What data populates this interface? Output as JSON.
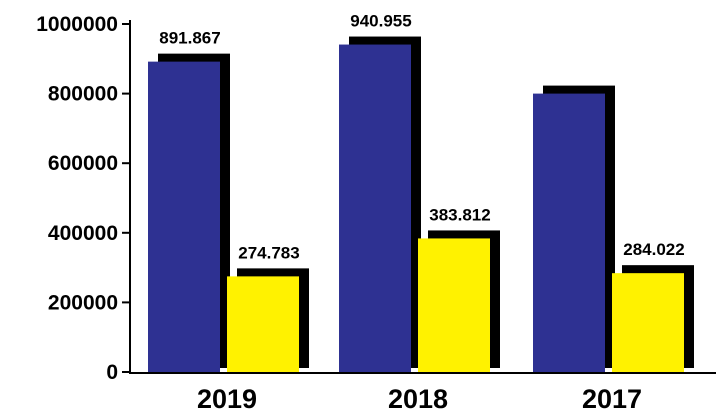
{
  "chart_data": {
    "type": "bar",
    "categories": [
      "2019",
      "2018",
      "2017"
    ],
    "series": [
      {
        "color": "#2e3192",
        "values": [
          891867,
          940955,
          800000
        ],
        "labels": [
          "891.867",
          "940.955",
          ""
        ]
      },
      {
        "color": "#fff200",
        "values": [
          274783,
          383812,
          284022
        ],
        "labels": [
          "274.783",
          "383.812",
          "284.022"
        ]
      }
    ],
    "ylim": [
      0,
      1000000
    ],
    "yticks": [
      0,
      200000,
      400000,
      600000,
      800000,
      1000000
    ],
    "ytick_labels": [
      "0",
      "200000",
      "400000",
      "600000",
      "800000",
      "1000000"
    ],
    "shadow_color": "#000000",
    "grid": false
  }
}
